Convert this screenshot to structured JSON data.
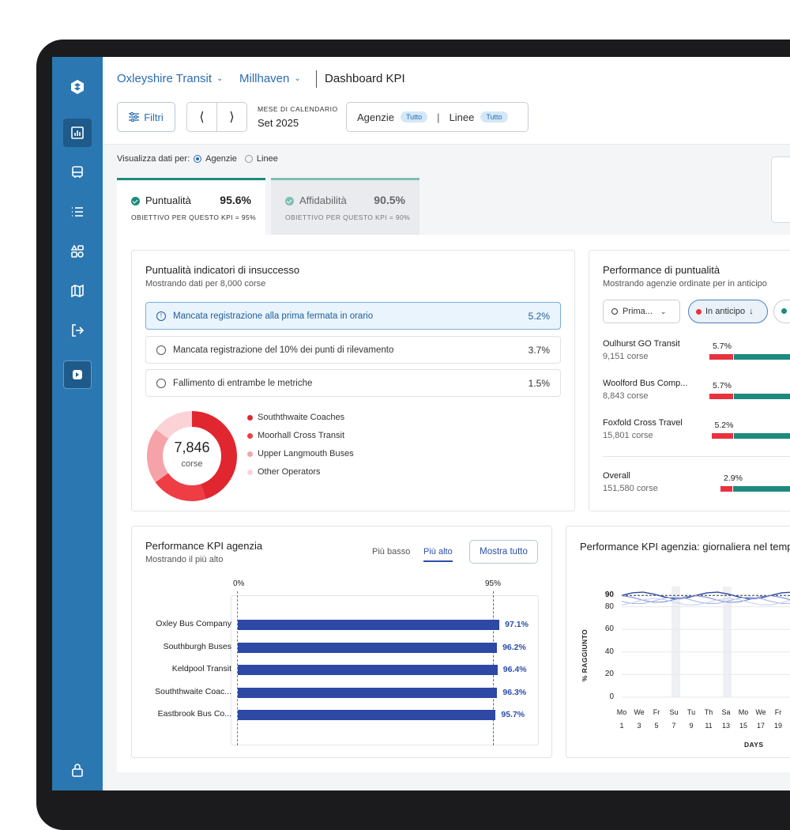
{
  "sidebar": {
    "items": [
      {
        "icon": "logo-icon"
      },
      {
        "icon": "bar-chart-icon",
        "active": true
      },
      {
        "icon": "bus-icon"
      },
      {
        "icon": "list-icon"
      },
      {
        "icon": "apps-icon"
      },
      {
        "icon": "map-icon"
      },
      {
        "icon": "logout-icon"
      },
      {
        "icon": "brand-app-icon"
      },
      {
        "icon": "lock-icon"
      }
    ]
  },
  "header": {
    "breadcrumb_agency": "Oxleyshire Transit",
    "breadcrumb_region": "Millhaven",
    "title": "Dashboard KPI",
    "filter_label": "Filtri",
    "month_label": "MESE DI CALENDARIO",
    "month_value": "Set 2025",
    "agencies_label": "Agenzie",
    "agencies_value": "Tutto",
    "lines_label": "Linee",
    "lines_value": "Tutto",
    "separator": "|"
  },
  "view": {
    "label": "Visualizza dati per:",
    "option_agencies": "Agenzie",
    "option_lines": "Linee",
    "selected": "Agenzie"
  },
  "kpi_tabs": [
    {
      "label": "Puntualità",
      "value": "95.6%",
      "goal": "OBIETTIVO PER QUESTO KPI = 95%"
    },
    {
      "label": "Affidabilità",
      "value": "90.5%",
      "goal": "OBIETTIVO PER QUESTO KPI = 90%"
    }
  ],
  "failure_card": {
    "title": "Puntualità indicatori di insuccesso",
    "subtitle": "Mostrando dati per 8,000 corse",
    "rows": [
      {
        "icon": "info-icon",
        "label": "Mancata registrazione alla prima fermata in orario",
        "value": "5.2%"
      },
      {
        "icon": "clock-icon",
        "label": "Mancata registrazione del 10% dei punti di rilevamento",
        "value": "3.7%"
      },
      {
        "icon": "frown-icon",
        "label": "Fallimento di entrambe le metriche",
        "value": "1.5%"
      }
    ],
    "donut_total": "7,846",
    "donut_unit": "corse",
    "donut_legend": [
      {
        "label": "Souththwaite Coaches",
        "color": "#e0262f",
        "share": 0.45
      },
      {
        "label": "Moorhall Cross Transit",
        "color": "#ef3d46",
        "share": 0.2
      },
      {
        "label": "Upper Langmouth Buses",
        "color": "#f5a3a8",
        "share": 0.2
      },
      {
        "label": "Other Operators",
        "color": "#fbd3d6",
        "share": 0.15
      }
    ]
  },
  "perf_card": {
    "title": "Performance di puntualità",
    "subtitle": "Mostrando agenzie ordinate per in anticipo",
    "dropdown_value": "Prima...",
    "pill_label": "In anticipo",
    "agencies": [
      {
        "name": "Oulhurst GO Transit",
        "trips": "9,151 corse",
        "pct": "5.7%",
        "early": 5.7
      },
      {
        "name": "Woolford Bus Comp...",
        "trips": "8,843 corse",
        "pct": "5.7%",
        "early": 5.7
      },
      {
        "name": "Foxfold Cross Travel",
        "trips": "15,801 corse",
        "pct": "5.2%",
        "early": 5.2
      }
    ],
    "overall": {
      "name": "Overall",
      "trips": "151,580 corse",
      "pct": "2.9%",
      "early": 2.9
    }
  },
  "agency_kpi": {
    "title": "Performance KPI agenzia",
    "subtitle": "Mostrando il più alto",
    "sort_low": "Più basso",
    "sort_high": "Più alto",
    "show_all": "Mostra tutto",
    "axis_start": "0%",
    "target_label": "95%",
    "bars": [
      {
        "name": "Oxley Bus Company",
        "value": 97.1,
        "label": "97.1%"
      },
      {
        "name": "Southburgh Buses",
        "value": 96.2,
        "label": "96.2%"
      },
      {
        "name": "Keldpool Transit",
        "value": 96.4,
        "label": "96.4%"
      },
      {
        "name": "Souththwaite Coac...",
        "value": 96.3,
        "label": "96.3%"
      },
      {
        "name": "Eastbrook Bus Co...",
        "value": 95.7,
        "label": "95.7%"
      }
    ]
  },
  "daily_kpi": {
    "title": "Performance KPI agenzia: giornaliera nel tempo",
    "ylabel": "% RAGGIUNTO",
    "xlabel": "DAYS",
    "yticks": [
      "90",
      "80",
      "60",
      "40",
      "20",
      "0"
    ],
    "xdays": [
      "Mo",
      "We",
      "Fr",
      "Su",
      "Tu",
      "Th",
      "Sa",
      "Mo",
      "We",
      "Fr"
    ],
    "xdates": [
      "1",
      "3",
      "5",
      "7",
      "9",
      "11",
      "13",
      "15",
      "17",
      "19"
    ]
  },
  "colors": {
    "sidebar": "#2b77b1",
    "accent_teal": "#1c8b7e",
    "accent_red": "#e8323e",
    "bar_blue": "#2d48a5",
    "link_blue": "#2b6cb0"
  }
}
